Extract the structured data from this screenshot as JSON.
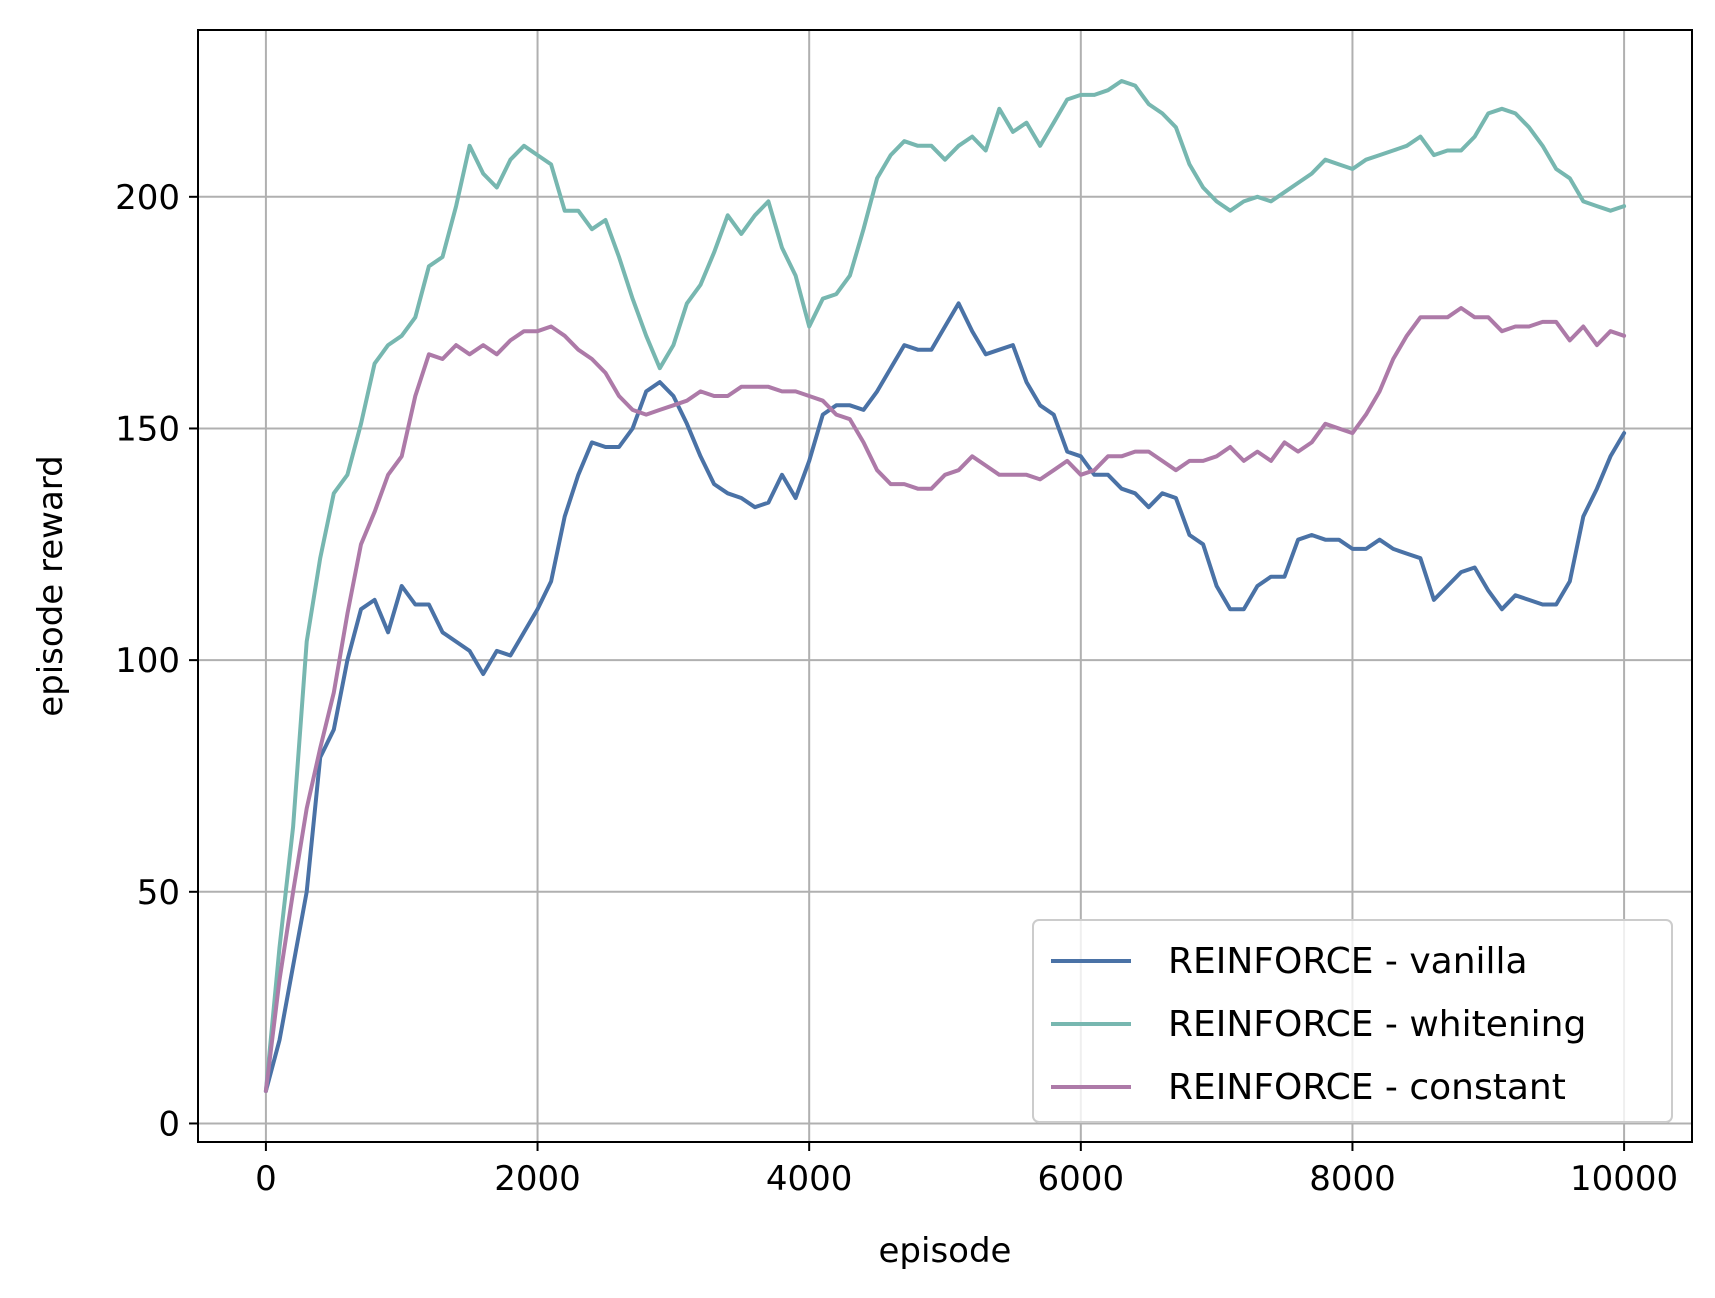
{
  "chart_data": {
    "type": "line",
    "title": "",
    "xlabel": "episode",
    "ylabel": "episode reward",
    "xlim": [
      -500,
      10500
    ],
    "ylim": [
      -4,
      236
    ],
    "grid": true,
    "legend_position": "bottom-right",
    "xticks": [
      0,
      2000,
      4000,
      6000,
      8000,
      10000
    ],
    "xtick_labels": [
      "0",
      "2000",
      "4000",
      "6000",
      "8000",
      "10000"
    ],
    "yticks": [
      0,
      50,
      100,
      150,
      200
    ],
    "ytick_labels": [
      "0",
      "50",
      "100",
      "150",
      "200"
    ],
    "x": [
      0,
      100,
      200,
      300,
      400,
      500,
      600,
      700,
      800,
      900,
      1000,
      1100,
      1200,
      1300,
      1400,
      1500,
      1600,
      1700,
      1800,
      1900,
      2000,
      2100,
      2200,
      2300,
      2400,
      2500,
      2600,
      2700,
      2800,
      2900,
      3000,
      3100,
      3200,
      3300,
      3400,
      3500,
      3600,
      3700,
      3800,
      3900,
      4000,
      4100,
      4200,
      4300,
      4400,
      4500,
      4600,
      4700,
      4800,
      4900,
      5000,
      5100,
      5200,
      5300,
      5400,
      5500,
      5600,
      5700,
      5800,
      5900,
      6000,
      6100,
      6200,
      6300,
      6400,
      6500,
      6600,
      6700,
      6800,
      6900,
      7000,
      7100,
      7200,
      7300,
      7400,
      7500,
      7600,
      7700,
      7800,
      7900,
      8000,
      8100,
      8200,
      8300,
      8400,
      8500,
      8600,
      8700,
      8800,
      8900,
      9000,
      9100,
      9200,
      9300,
      9400,
      9500,
      9600,
      9700,
      9800,
      9900,
      10000
    ],
    "series": [
      {
        "name": "REINFORCE - vanilla",
        "color": "#4a72a6",
        "values": [
          7,
          18,
          34,
          50,
          79,
          85,
          100,
          111,
          113,
          106,
          116,
          112,
          112,
          106,
          104,
          102,
          97,
          102,
          101,
          106,
          111,
          117,
          131,
          140,
          147,
          146,
          146,
          150,
          158,
          160,
          157,
          151,
          144,
          138,
          136,
          135,
          133,
          134,
          140,
          135,
          143,
          153,
          155,
          155,
          154,
          158,
          163,
          168,
          167,
          167,
          172,
          177,
          171,
          166,
          167,
          168,
          160,
          155,
          153,
          145,
          144,
          140,
          140,
          137,
          136,
          133,
          136,
          135,
          127,
          125,
          116,
          111,
          111,
          116,
          118,
          118,
          126,
          127,
          126,
          126,
          124,
          124,
          126,
          124,
          123,
          122,
          113,
          116,
          119,
          120,
          115,
          111,
          114,
          113,
          112,
          112,
          117,
          131,
          137,
          144,
          149
        ]
      },
      {
        "name": "REINFORCE - whitening",
        "color": "#77b7b0",
        "values": [
          7,
          38,
          64,
          104,
          122,
          136,
          140,
          151,
          164,
          168,
          170,
          174,
          185,
          187,
          198,
          211,
          205,
          202,
          208,
          211,
          209,
          207,
          197,
          197,
          193,
          195,
          187,
          178,
          170,
          163,
          168,
          177,
          181,
          188,
          196,
          192,
          196,
          199,
          189,
          183,
          172,
          178,
          179,
          183,
          193,
          204,
          209,
          212,
          211,
          211,
          208,
          211,
          213,
          210,
          219,
          214,
          216,
          211,
          216,
          221,
          222,
          222,
          223,
          225,
          224,
          220,
          218,
          215,
          207,
          202,
          199,
          197,
          199,
          200,
          199,
          201,
          203,
          205,
          208,
          207,
          206,
          208,
          209,
          210,
          211,
          213,
          209,
          210,
          210,
          213,
          218,
          219,
          218,
          215,
          211,
          206,
          204,
          199,
          198,
          197,
          198
        ]
      },
      {
        "name": "REINFORCE - constant",
        "color": "#ad7aa8",
        "values": [
          7,
          31,
          50,
          68,
          81,
          93,
          110,
          125,
          132,
          140,
          144,
          157,
          166,
          165,
          168,
          166,
          168,
          166,
          169,
          171,
          171,
          172,
          170,
          167,
          165,
          162,
          157,
          154,
          153,
          154,
          155,
          156,
          158,
          157,
          157,
          159,
          159,
          159,
          158,
          158,
          157,
          156,
          153,
          152,
          147,
          141,
          138,
          138,
          137,
          137,
          140,
          141,
          144,
          142,
          140,
          140,
          140,
          139,
          141,
          143,
          140,
          141,
          144,
          144,
          145,
          145,
          143,
          141,
          143,
          143,
          144,
          146,
          143,
          145,
          143,
          147,
          145,
          147,
          151,
          150,
          149,
          153,
          158,
          165,
          170,
          174,
          174,
          174,
          176,
          174,
          174,
          171,
          172,
          172,
          173,
          173,
          169,
          172,
          168,
          171,
          170
        ]
      }
    ]
  }
}
